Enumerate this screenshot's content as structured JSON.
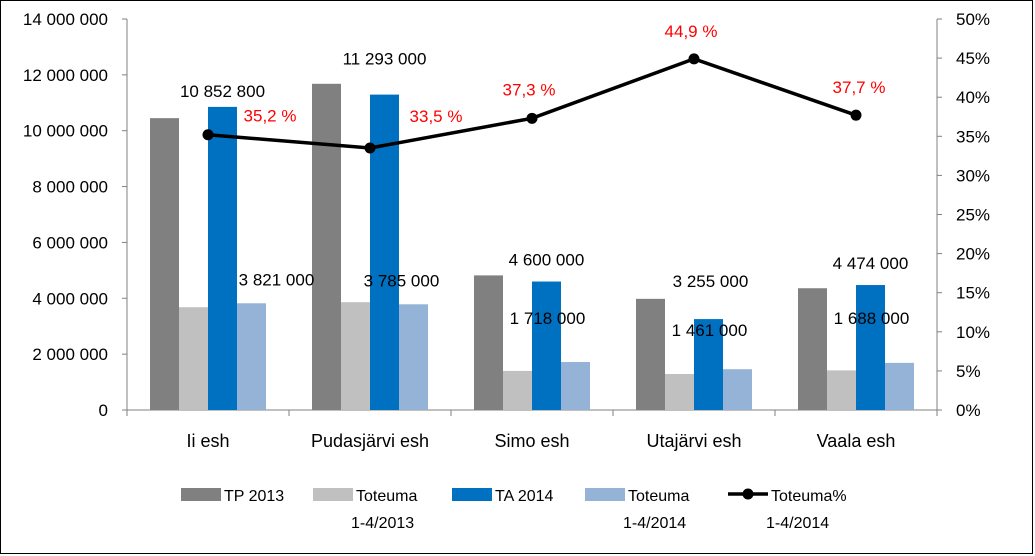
{
  "chart_data": {
    "type": "bar",
    "categories": [
      "Ii esh",
      "Pudasjärvi esh",
      "Simo esh",
      "Utajärvi esh",
      "Vaala esh"
    ],
    "series": [
      {
        "name": "TP 2013",
        "legend_lines": [
          "TP 2013"
        ],
        "values": [
          10450000,
          11680000,
          4820000,
          3980000,
          4360000
        ],
        "color": "#808080"
      },
      {
        "name": "Toteuma 1-4/2013",
        "legend_lines": [
          "Toteuma",
          "1-4/2013"
        ],
        "values": [
          3680000,
          3860000,
          1400000,
          1290000,
          1420000
        ],
        "color": "#c0c0c0"
      },
      {
        "name": "TA 2014",
        "legend_lines": [
          "TA 2014"
        ],
        "values": [
          10852800,
          11293000,
          4600000,
          3255000,
          4474000
        ],
        "labels": [
          "10 852 800",
          "11 293 000",
          "4 600 000",
          "3 255 000",
          "4 474 000"
        ],
        "color": "#0070c0"
      },
      {
        "name": "Toteuma 1-4/2014",
        "legend_lines": [
          "Toteuma",
          "1-4/2014"
        ],
        "values": [
          3821000,
          3785000,
          1718000,
          1461000,
          1688000
        ],
        "labels": [
          "3 821 000",
          "3 785 000",
          "1 718 000",
          "1 461 000",
          "1 688 000"
        ],
        "color": "#95b3d7"
      }
    ],
    "line_series": {
      "name": "Toteuma% 1-4/2014",
      "legend_lines": [
        "Toteuma%",
        "1-4/2014"
      ],
      "values": [
        35.2,
        33.5,
        37.3,
        44.9,
        37.7
      ],
      "labels": [
        "35,2 %",
        "33,5 %",
        "37,3 %",
        "44,9 %",
        "37,7 %"
      ],
      "color": "#000000",
      "label_color": "#ff0000"
    },
    "ylim": [
      0,
      14000000
    ],
    "y_ticks": [
      0,
      2000000,
      4000000,
      6000000,
      8000000,
      10000000,
      12000000,
      14000000
    ],
    "y_tick_labels": [
      "0",
      "2 000 000",
      "4 000 000",
      "6 000 000",
      "8 000 000",
      "10 000 000",
      "12 000 000",
      "14 000 000"
    ],
    "y2lim": [
      0,
      50
    ],
    "y2_ticks": [
      0,
      5,
      10,
      15,
      20,
      25,
      30,
      35,
      40,
      45,
      50
    ],
    "y2_tick_labels": [
      "0%",
      "5%",
      "10%",
      "15%",
      "20%",
      "25%",
      "30%",
      "35%",
      "40%",
      "45%",
      "50%"
    ],
    "grid": false,
    "legend_position": "bottom"
  }
}
